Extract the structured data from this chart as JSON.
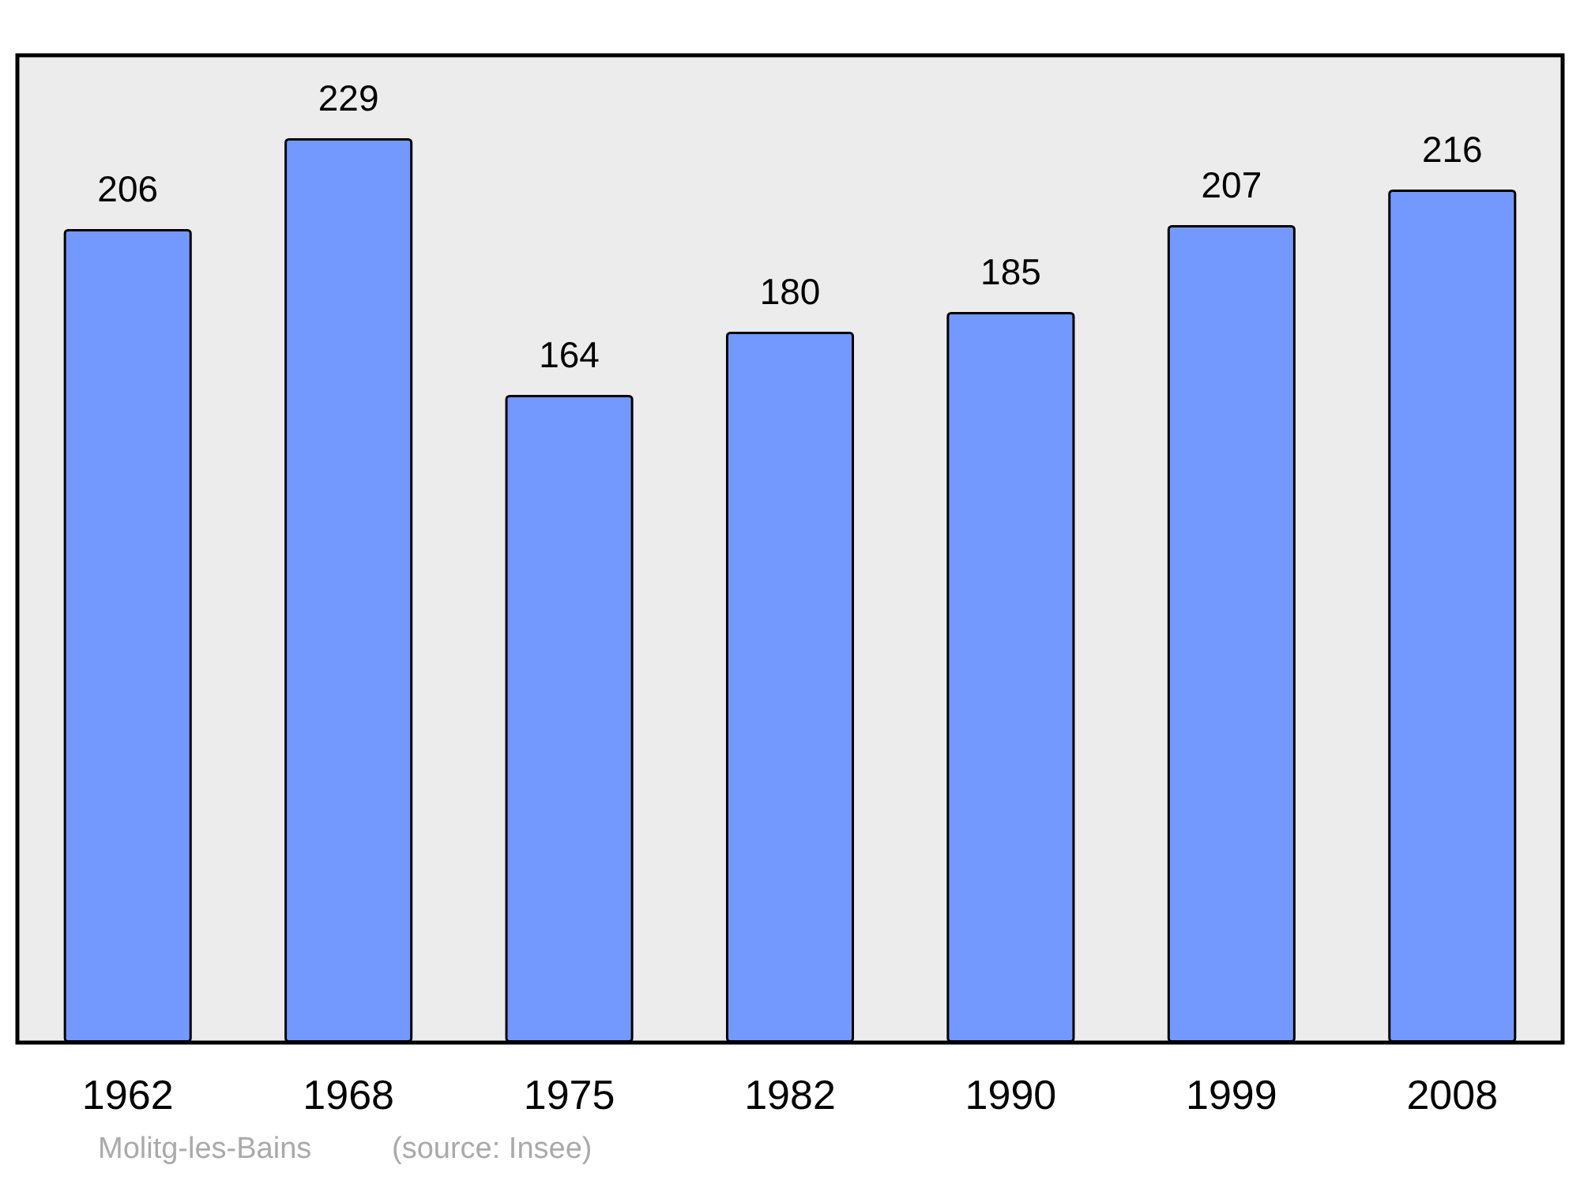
{
  "chart_data": {
    "type": "bar",
    "categories": [
      "1962",
      "1968",
      "1975",
      "1982",
      "1990",
      "1999",
      "2008"
    ],
    "values": [
      206,
      229,
      164,
      180,
      185,
      207,
      216
    ],
    "color": "#7399ff",
    "data_labels": true,
    "annotations": [
      "Molitg-les-Bains",
      "(source: Insee)"
    ]
  }
}
